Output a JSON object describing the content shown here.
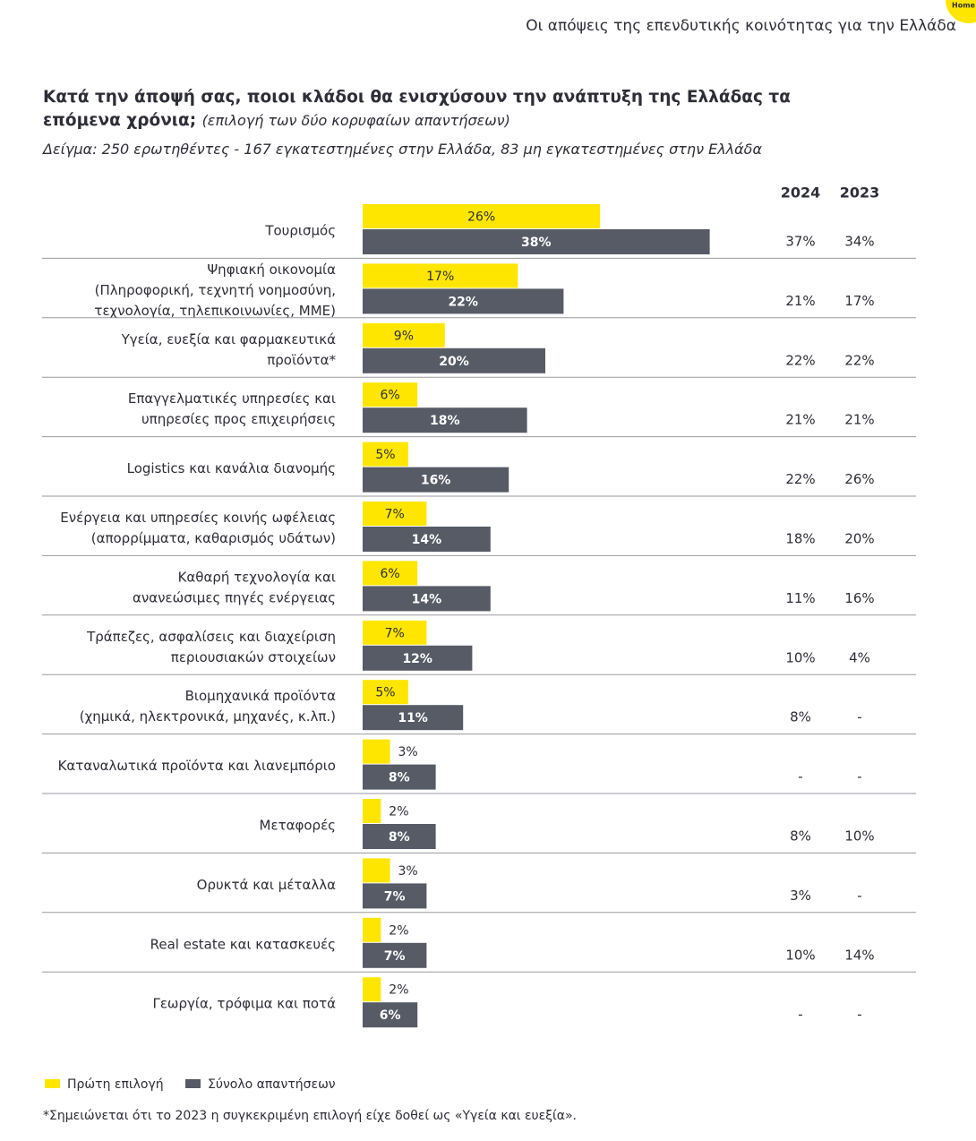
{
  "header": {
    "section": "Οι απόψεις της επενδυτικής κοινότητας για την Ελλάδα",
    "home": "Home"
  },
  "chart_data": {
    "type": "bar",
    "orientation": "horizontal",
    "title": "Κατά την άποψή σας, ποιοι κλάδοι θα ενισχύσουν την ανάπτυξη της Ελλάδας τα επόμενα χρόνια;",
    "title_note": "(επιλογή των δύο κορυφαίων απαντήσεων)",
    "subtitle": "Δείγμα: 250 ερωτηθέντες - 167 εγκατεστημένες στην Ελλάδα, 83 μη εγκατεστημένες στην Ελλάδα",
    "categories": [
      [
        "Τουρισμός"
      ],
      [
        "Ψηφιακή οικονομία",
        "(Πληροφορική, τεχνητή νοημοσύνη,",
        "τεχνολογία, τηλεπικοινωνίες, ΜΜΕ)"
      ],
      [
        "Υγεία, ευεξία και φαρμακευτικά",
        "προϊόντα*"
      ],
      [
        "Επαγγελματικές υπηρεσίες και",
        "υπηρεσίες προς επιχειρήσεις"
      ],
      [
        "Logistics και κανάλια διανομής"
      ],
      [
        "Ενέργεια και υπηρεσίες κοινής ωφέλειας",
        "(απορρίμματα, καθαρισμός υδάτων)"
      ],
      [
        "Καθαρή τεχνολογία και",
        "ανανεώσιμες πηγές ενέργειας"
      ],
      [
        "Τράπεζες, ασφαλίσεις και διαχείριση",
        "περιουσιακών στοιχείων"
      ],
      [
        "Βιομηχανικά προϊόντα",
        "(χημικά, ηλεκτρονικά, μηχανές, κ.λπ.)"
      ],
      [
        "Καταναλωτικά προϊόντα και λιανεμπόριο"
      ],
      [
        "Μεταφορές"
      ],
      [
        "Ορυκτά και μέταλλα"
      ],
      [
        "Real estate και κατασκευές"
      ],
      [
        "Γεωργία, τρόφιμα και ποτά"
      ]
    ],
    "series": [
      {
        "name": "Πρώτη επιλογή",
        "color": "#ffe600",
        "values": [
          26,
          17,
          9,
          6,
          5,
          7,
          6,
          7,
          5,
          3,
          2,
          3,
          2,
          2
        ],
        "value_labels": [
          "26%",
          "17%",
          "9%",
          "6%",
          "5%",
          "7%",
          "6%",
          "7%",
          "5%",
          "3%",
          "2%",
          "3%",
          "2%",
          "2%"
        ]
      },
      {
        "name": "Σύνολο απαντήσεων",
        "color": "#565b66",
        "values": [
          38,
          22,
          20,
          18,
          16,
          14,
          14,
          12,
          11,
          8,
          8,
          7,
          7,
          6
        ],
        "value_labels": [
          "38%",
          "22%",
          "20%",
          "18%",
          "16%",
          "14%",
          "14%",
          "12%",
          "11%",
          "8%",
          "8%",
          "7%",
          "7%",
          "6%"
        ]
      }
    ],
    "table": {
      "columns": [
        "2024",
        "2023"
      ],
      "rows": [
        [
          "37%",
          "34%"
        ],
        [
          "21%",
          "17%"
        ],
        [
          "22%",
          "22%"
        ],
        [
          "21%",
          "21%"
        ],
        [
          "22%",
          "26%"
        ],
        [
          "18%",
          "20%"
        ],
        [
          "11%",
          "16%"
        ],
        [
          "10%",
          "4%"
        ],
        [
          "8%",
          "-"
        ],
        [
          "-",
          "-"
        ],
        [
          "8%",
          "10%"
        ],
        [
          "3%",
          "-"
        ],
        [
          "10%",
          "14%"
        ],
        [
          "-",
          "-"
        ]
      ]
    },
    "footnote": "*Σημειώνεται ότι το 2023 η συγκεκριμένη επιλογή είχε δοθεί ως «Υγεία και ευεξία»."
  }
}
